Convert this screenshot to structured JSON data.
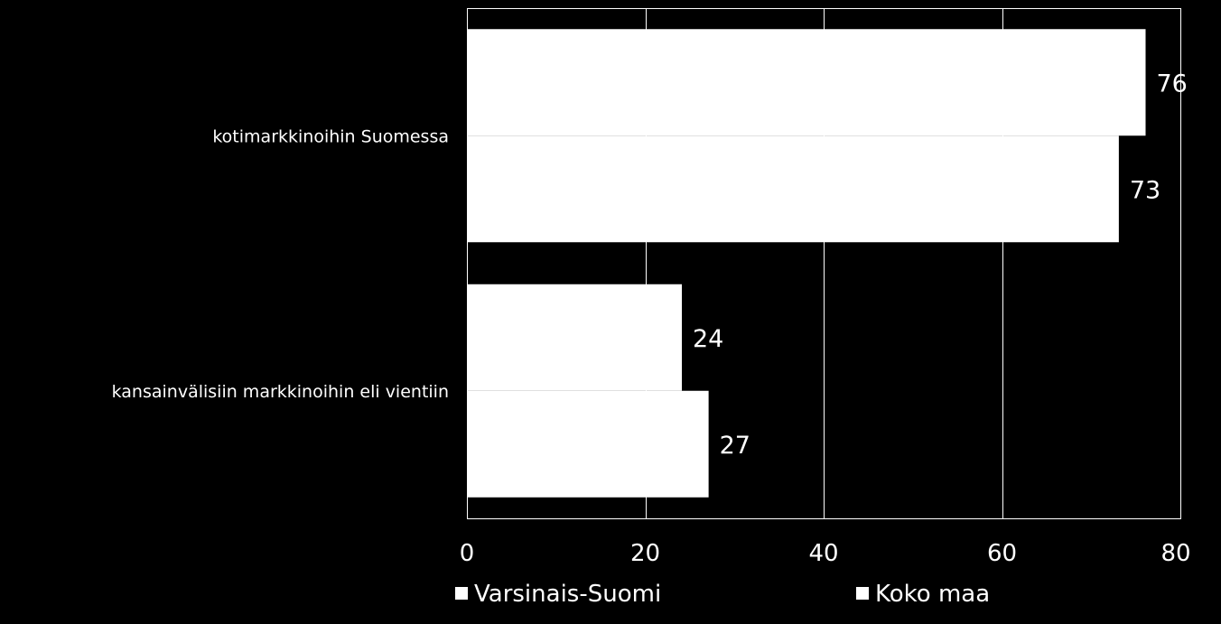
{
  "chart_data": {
    "type": "bar",
    "orientation": "horizontal",
    "categories": [
      "kotimarkkinoihin Suomessa",
      "kansainvälisiin markkinoihin eli vientiin"
    ],
    "series": [
      {
        "name": "Varsinais-Suomi",
        "values": [
          76,
          24
        ],
        "color": "#ffffff"
      },
      {
        "name": "Koko maa",
        "values": [
          73,
          27
        ],
        "color": "#ffffff"
      }
    ],
    "data_labels": [
      [
        "76",
        "24"
      ],
      [
        "73",
        "27"
      ]
    ],
    "xlim": [
      0,
      80
    ],
    "x_ticks": [
      0,
      20,
      40,
      60,
      80
    ],
    "x_tick_labels": [
      "0",
      "20",
      "40",
      "60",
      "80"
    ],
    "title": "",
    "xlabel": "",
    "ylabel": "",
    "grid": true,
    "legend_position": "bottom",
    "colors": {
      "background": "#000000",
      "plot_border": "#ffffff",
      "gridlines": "#ffffff",
      "text": "#ffffff"
    }
  }
}
